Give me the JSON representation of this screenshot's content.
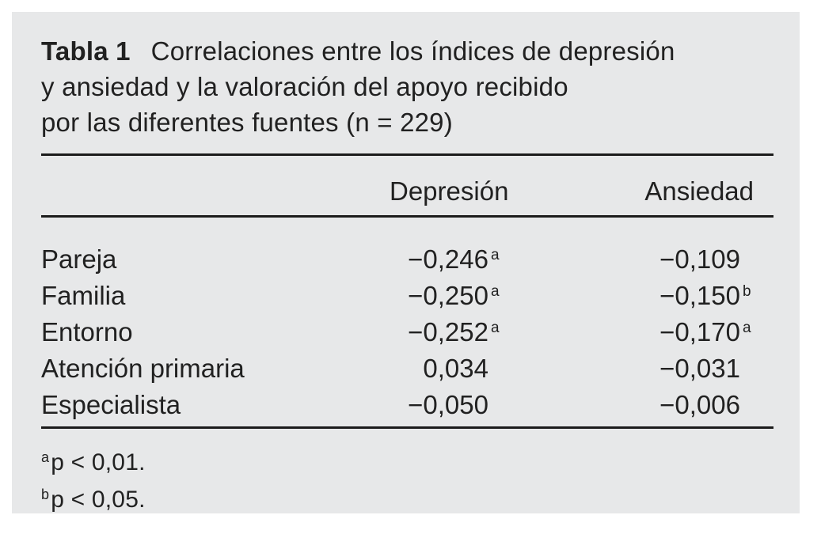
{
  "page": {
    "background": "#ffffff",
    "panel_bg": "#e7e8e9",
    "text_color": "#212121",
    "rule_color": "#1b1b1b"
  },
  "table": {
    "label": "Tabla 1",
    "caption_line1": "Correlaciones entre los índices de depresión",
    "caption_line2": "y ansiedad y la valoración del apoyo recibido",
    "caption_line3": "por las diferentes fuentes (n = 229)",
    "columns": {
      "col1": "Depresión",
      "col2": "Ansiedad"
    },
    "rows": [
      {
        "label": "Pareja",
        "dep": "−0,246",
        "dep_sup": "a",
        "ans": "−0,109",
        "ans_sup": ""
      },
      {
        "label": "Familia",
        "dep": "−0,250",
        "dep_sup": "a",
        "ans": "−0,150",
        "ans_sup": "b"
      },
      {
        "label": "Entorno",
        "dep": "−0,252",
        "dep_sup": "a",
        "ans": "−0,170",
        "ans_sup": "a"
      },
      {
        "label": "Atención primaria",
        "dep": "0,034",
        "dep_sup": "",
        "ans": "−0,031",
        "ans_sup": ""
      },
      {
        "label": "Especialista",
        "dep": "−0,050",
        "dep_sup": "",
        "ans": "−0,006",
        "ans_sup": ""
      }
    ],
    "footnotes": [
      {
        "marker": "a",
        "text": "p < 0,01."
      },
      {
        "marker": "b",
        "text": "p < 0,05."
      }
    ]
  }
}
